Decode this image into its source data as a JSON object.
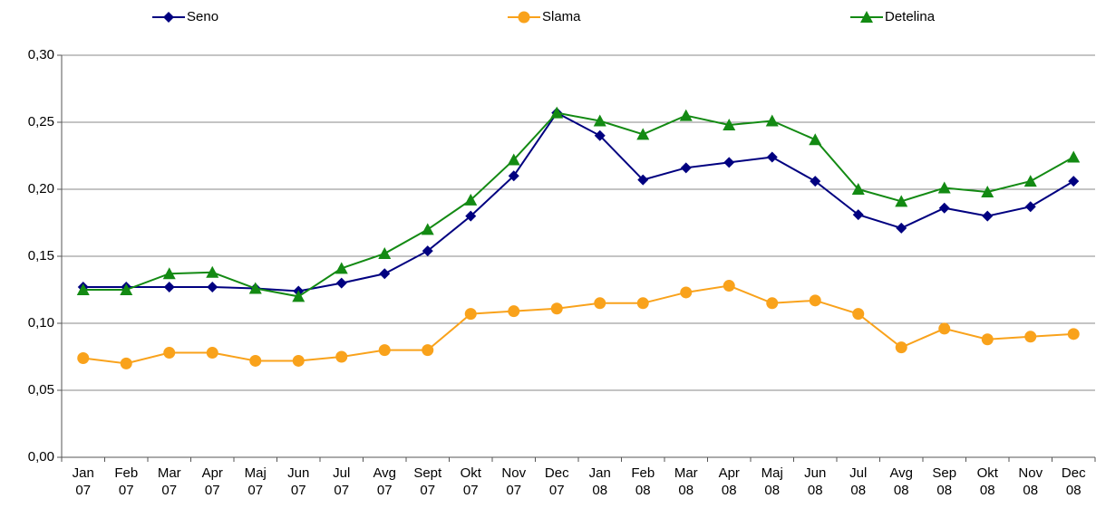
{
  "chart_data": {
    "type": "line",
    "categories": [
      "Jan 07",
      "Feb 07",
      "Mar 07",
      "Apr 07",
      "Maj 07",
      "Jun 07",
      "Jul 07",
      "Avg 07",
      "Sept 07",
      "Okt 07",
      "Nov 07",
      "Dec 07",
      "Jan 08",
      "Feb 08",
      "Mar 08",
      "Apr 08",
      "Maj 08",
      "Jun 08",
      "Jul 08",
      "Avg 08",
      "Sep 08",
      "Okt 08",
      "Nov 08",
      "Dec 08"
    ],
    "series": [
      {
        "name": "Seno",
        "color": "#000080",
        "marker": "diamond",
        "values": [
          0.127,
          0.127,
          0.127,
          0.127,
          0.126,
          0.124,
          0.13,
          0.137,
          0.154,
          0.18,
          0.21,
          0.257,
          0.24,
          0.207,
          0.216,
          0.22,
          0.224,
          0.206,
          0.181,
          0.171,
          0.186,
          0.18,
          0.187,
          0.206
        ]
      },
      {
        "name": "Slama",
        "color": "#f9a21b",
        "marker": "circle",
        "values": [
          0.074,
          0.07,
          0.078,
          0.078,
          0.072,
          0.072,
          0.075,
          0.08,
          0.08,
          0.107,
          0.109,
          0.111,
          0.115,
          0.115,
          0.123,
          0.128,
          0.115,
          0.117,
          0.107,
          0.082,
          0.096,
          0.088,
          0.09,
          0.092
        ]
      },
      {
        "name": "Detelina",
        "color": "#138a13",
        "marker": "triangle",
        "values": [
          0.125,
          0.125,
          0.137,
          0.138,
          0.126,
          0.12,
          0.141,
          0.152,
          0.17,
          0.192,
          0.222,
          0.257,
          0.251,
          0.241,
          0.255,
          0.248,
          0.251,
          0.237,
          0.2,
          0.191,
          0.201,
          0.198,
          0.206,
          0.224
        ]
      }
    ],
    "ylim": [
      0,
      0.3
    ],
    "yticks": [
      {
        "value": 0,
        "label": "0,00"
      },
      {
        "value": 0.05,
        "label": "0,05"
      },
      {
        "value": 0.1,
        "label": "0,10"
      },
      {
        "value": 0.15,
        "label": "0,15"
      },
      {
        "value": 0.2,
        "label": "0,20"
      },
      {
        "value": 0.25,
        "label": "0,25"
      },
      {
        "value": 0.3,
        "label": "0,30"
      }
    ],
    "grid": true,
    "legend": "top"
  }
}
